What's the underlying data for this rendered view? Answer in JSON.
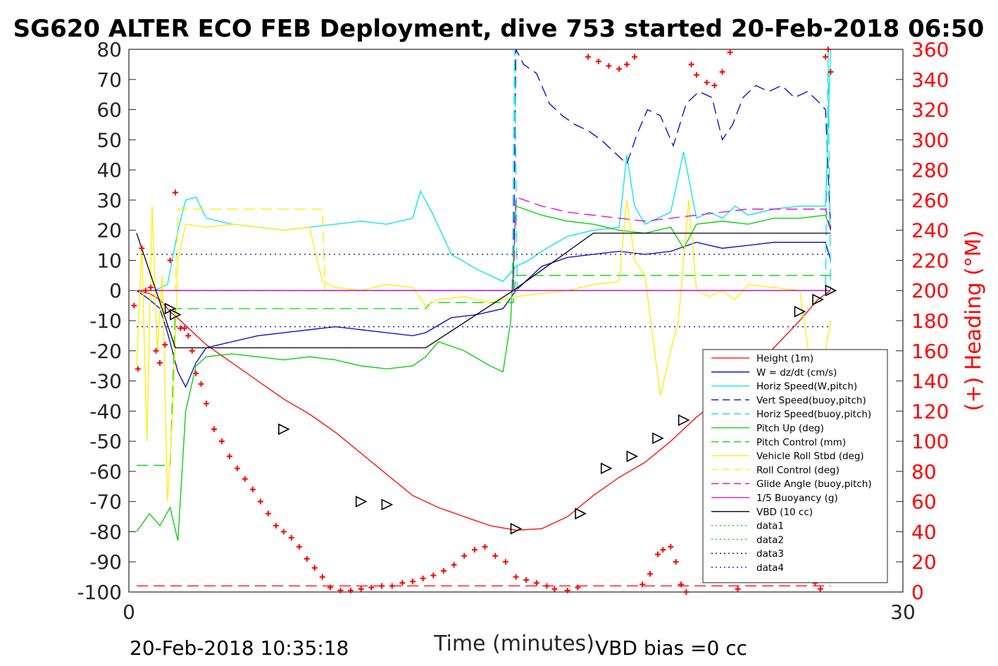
{
  "chart_data": {
    "type": "line",
    "title": "SG620 ALTER ECO FEB Deployment, dive 753 started 20-Feb-2018 06:50",
    "xlabel": "Time (minutes)",
    "ylabel_right": "(+) Heading (°M)",
    "xlim": [
      0,
      30
    ],
    "ylim_left": [
      -100,
      80
    ],
    "ylim_right": [
      0,
      360
    ],
    "x_ticks": [
      0,
      30
    ],
    "y_ticks_left": [
      80,
      70,
      60,
      50,
      40,
      30,
      20,
      10,
      0,
      -10,
      -20,
      -30,
      -40,
      -50,
      -60,
      -70,
      -80,
      -90,
      -100
    ],
    "y_ticks_right": [
      360,
      340,
      320,
      300,
      280,
      260,
      240,
      220,
      200,
      180,
      160,
      140,
      120,
      100,
      80,
      60,
      40,
      20,
      0
    ],
    "footer_left": "20-Feb-2018 10:35:18",
    "footer_right": "VBD bias =0 cc",
    "colors": {
      "right_axis": "#ff0000",
      "axis": "#262626"
    },
    "legend_position": "lower-right",
    "legend": [
      {
        "label": "Height (1m)",
        "color": "#ff0000",
        "dash": "solid"
      },
      {
        "label": "W = dz/dt (cm/s)",
        "color": "#0000cc",
        "dash": "solid"
      },
      {
        "label": "Horiz Speed(W,pitch)",
        "color": "#00e5e5",
        "dash": "solid"
      },
      {
        "label": "Vert Speed(buoy,pitch)",
        "color": "#0000cc",
        "dash": "dashed"
      },
      {
        "label": "Horiz Speed(buoy,pitch)",
        "color": "#00e5e5",
        "dash": "dashed"
      },
      {
        "label": "Pitch Up (deg)",
        "color": "#00cc00",
        "dash": "solid"
      },
      {
        "label": "Pitch Control (mm)",
        "color": "#00dd00",
        "dash": "dashed"
      },
      {
        "label": "Vehicle Roll Stbd (deg)",
        "color": "#ffee00",
        "dash": "solid"
      },
      {
        "label": "Roll Control (deg)",
        "color": "#ffee00",
        "dash": "dashed"
      },
      {
        "label": "Glide Angle (buoy,pitch)",
        "color": "#dd00dd",
        "dash": "dashed"
      },
      {
        "label": "1/5 Buoyancy (g)",
        "color": "#cc00cc",
        "dash": "solid"
      },
      {
        "label": "VBD (10 cc)",
        "color": "#000000",
        "dash": "solid"
      },
      {
        "label": "data1",
        "color": "#00cc00",
        "dash": "dotted"
      },
      {
        "label": "data2",
        "color": "#00cc00",
        "dash": "dotted"
      },
      {
        "label": "data3",
        "color": "#000080",
        "dash": "dotted"
      },
      {
        "label": "data4",
        "color": "#0000cc",
        "dash": "dotted"
      }
    ],
    "series": [
      {
        "name": "Height (1m)",
        "axis": "left",
        "color": "#ff0000",
        "dash": "solid",
        "x": [
          0.3,
          0.8,
          1.2,
          1.6,
          2.0,
          3.0,
          4.0,
          5.0,
          6.0,
          7.0,
          8.0,
          9.0,
          10.0,
          11.0,
          12.0,
          13.0,
          14.0,
          15.0,
          16.0,
          17.0,
          18.0,
          19.0,
          20.0,
          21.0,
          22.0,
          23.0,
          24.0,
          25.0,
          26.0,
          26.7,
          27.2
        ],
        "y": [
          0,
          -1,
          -3,
          -7,
          -10,
          -18,
          -24,
          -30,
          -36,
          -41,
          -47,
          -54,
          -61,
          -68,
          -72,
          -75,
          -78,
          -79.5,
          -79,
          -75,
          -68,
          -62,
          -57,
          -50,
          -42,
          -35,
          -27,
          -19,
          -10,
          -3,
          0
        ]
      },
      {
        "name": "W = dz/dt (cm/s)",
        "axis": "left",
        "color": "#0000cc",
        "dash": "solid",
        "x": [
          0.3,
          0.8,
          1.2,
          1.5,
          1.9,
          2.2,
          2.6,
          3.0,
          4.0,
          5.0,
          6.0,
          7.0,
          8.0,
          9.0,
          10.0,
          11.0,
          11.5,
          12.5,
          13.5,
          14.5,
          15.0,
          16.0,
          17.0,
          18.0,
          19.0,
          20.0,
          21.0,
          22.0,
          23.0,
          24.0,
          25.0,
          26.0,
          27.0,
          27.2
        ],
        "y": [
          0,
          -3,
          -6,
          -14,
          -27,
          -32,
          -24,
          -19,
          -17,
          -15,
          -14,
          -13,
          -12,
          -13,
          -14,
          -15,
          -14,
          -9,
          -8,
          -6,
          0,
          8,
          11,
          12,
          13,
          12,
          13,
          16,
          14,
          15,
          16,
          16,
          16,
          10
        ]
      },
      {
        "name": "Horiz Speed(W,pitch)",
        "axis": "left",
        "color": "#00e5e5",
        "dash": "solid",
        "x": [
          0.3,
          1.0,
          1.5,
          1.9,
          2.2,
          2.6,
          3.0,
          4.0,
          5.0,
          6.0,
          7.0,
          8.0,
          9.0,
          10.0,
          11.0,
          11.3,
          11.8,
          12.5,
          13.5,
          14.5,
          15.0,
          15.5,
          16.0,
          17.0,
          18.0,
          19.0,
          19.3,
          19.6,
          20.0,
          20.5,
          21.0,
          21.5,
          22.0,
          22.5,
          23.0,
          23.5,
          24.0,
          25.0,
          26.0,
          27.0,
          27.2
        ],
        "y": [
          0,
          0,
          2,
          20,
          30,
          31,
          24,
          22,
          21,
          20,
          21,
          22,
          23,
          22,
          24,
          33,
          25,
          12,
          7,
          3,
          8,
          10,
          13,
          18,
          20,
          21,
          45,
          28,
          22,
          24,
          26,
          46,
          24,
          26,
          24,
          28,
          25,
          27,
          28,
          28,
          80
        ]
      },
      {
        "name": "Vert Speed(buoy,pitch)",
        "axis": "left",
        "color": "#0000cc",
        "dash": "dashed",
        "x": [
          14.9,
          15.0,
          15.3,
          15.8,
          16.3,
          16.8,
          17.3,
          17.8,
          18.3,
          18.8,
          19.3,
          19.7,
          20.1,
          20.6,
          21.1,
          21.6,
          22.1,
          22.6,
          23.0,
          23.4,
          23.8,
          24.3,
          24.8,
          25.3,
          25.8,
          26.3,
          26.8,
          27.0,
          27.2
        ],
        "y": [
          0,
          80,
          75,
          72,
          62,
          58,
          55,
          53,
          50,
          46,
          42,
          52,
          60,
          58,
          48,
          62,
          66,
          64,
          50,
          55,
          64,
          68,
          66,
          68,
          64,
          66,
          62,
          60,
          20
        ]
      },
      {
        "name": "Horiz Speed(buoy,pitch)",
        "axis": "left",
        "color": "#00e5e5",
        "dash": "dashed",
        "x": [
          14.85,
          14.95,
          15.05,
          27.0,
          27.1,
          27.2
        ],
        "y": [
          0,
          80,
          0,
          0,
          80,
          0
        ]
      },
      {
        "name": "Pitch Up (deg)",
        "axis": "left",
        "color": "#00cc00",
        "dash": "solid",
        "x": [
          0.3,
          0.8,
          1.2,
          1.6,
          1.9,
          2.2,
          2.6,
          3.0,
          4.0,
          5.0,
          6.0,
          7.0,
          8.0,
          9.0,
          10.0,
          11.0,
          11.5,
          12.0,
          13.0,
          14.0,
          14.5,
          14.8,
          15.0,
          16.0,
          17.0,
          18.0,
          19.0,
          20.0,
          21.0,
          21.5,
          22.0,
          23.0,
          24.0,
          25.0,
          26.0,
          27.0,
          27.2
        ],
        "y": [
          -80,
          -74,
          -78,
          -72,
          -83,
          -40,
          -25,
          -22,
          -21,
          -22,
          -23,
          -22,
          -23,
          -25,
          -26,
          -25,
          -22,
          -17,
          -20,
          -25,
          -27,
          -10,
          28,
          25,
          23,
          22,
          20,
          19,
          21,
          14,
          22,
          23,
          22,
          24,
          24,
          25,
          20
        ]
      },
      {
        "name": "Pitch Control (mm)",
        "axis": "left",
        "color": "#00dd00",
        "dash": "dashed",
        "x": [
          0.3,
          1.6,
          1.8,
          11.5,
          11.7,
          14.9,
          15.0,
          27.2
        ],
        "y": [
          -58,
          -58,
          -6,
          -6,
          -4,
          -4,
          5,
          5
        ]
      },
      {
        "name": "Vehicle Roll Stbd (deg)",
        "axis": "left",
        "color": "#ffee00",
        "dash": "solid",
        "x": [
          0.3,
          0.5,
          0.7,
          0.9,
          1.1,
          1.3,
          1.5,
          1.7,
          1.9,
          2.2,
          3.0,
          4.0,
          5.0,
          6.0,
          7.0,
          7.5,
          8.0,
          9.0,
          10.0,
          11.0,
          11.5,
          12.0,
          13.0,
          14.0,
          15.0,
          16.0,
          17.0,
          18.0,
          19.0,
          19.3,
          19.6,
          20.0,
          20.6,
          21.0,
          21.3,
          21.7,
          22.0,
          22.5,
          23.0,
          23.5,
          24.0,
          25.0,
          26.0,
          26.5,
          26.9,
          27.2
        ],
        "y": [
          -25,
          15,
          -50,
          28,
          -20,
          5,
          -70,
          -40,
          10,
          22,
          21,
          22,
          21,
          20,
          21,
          3,
          1,
          0,
          2,
          1,
          -5,
          -3,
          -2,
          -4,
          -2,
          -1,
          0,
          2,
          3,
          30,
          10,
          5,
          -35,
          -20,
          -10,
          30,
          0,
          -2,
          0,
          -3,
          2,
          1,
          0,
          -30,
          -25,
          -10
        ]
      },
      {
        "name": "Roll Control (deg)",
        "axis": "left",
        "color": "#ffee00",
        "dash": "dashed",
        "x": [
          0.3,
          1.0,
          1.8,
          1.9,
          7.5,
          7.6,
          27.2
        ],
        "y": [
          0,
          0,
          0,
          27,
          27,
          0,
          0
        ]
      },
      {
        "name": "Glide Angle (buoy,pitch)",
        "axis": "left",
        "color": "#dd00dd",
        "dash": "dashed",
        "x": [
          0.3,
          14.9,
          15.0,
          16.0,
          17.0,
          18.0,
          19.0,
          20.0,
          21.0,
          22.0,
          23.0,
          24.0,
          25.0,
          26.0,
          27.0,
          27.2
        ],
        "y": [
          0,
          0,
          31,
          28,
          26,
          25,
          24,
          23,
          24,
          25,
          26,
          27,
          27,
          27,
          27,
          20
        ]
      },
      {
        "name": "1/5 Buoyancy (g)",
        "axis": "left",
        "color": "#cc00cc",
        "dash": "solid",
        "x": [
          0.3,
          14.9,
          27.2
        ],
        "y": [
          0,
          0,
          0
        ]
      },
      {
        "name": "VBD (10 cc)",
        "axis": "left",
        "color": "#000000",
        "dash": "solid",
        "x": [
          0.3,
          1.8,
          11.5,
          14.9,
          18.0,
          27.2
        ],
        "y": [
          19,
          -19,
          -19,
          0,
          19,
          19
        ]
      },
      {
        "name": "data3",
        "axis": "left",
        "color": "#000080",
        "dash": "dotted",
        "x": [
          0.3,
          27.2
        ],
        "y": [
          12,
          12
        ]
      },
      {
        "name": "data4",
        "axis": "left",
        "color": "#0000cc",
        "dash": "dotted",
        "x": [
          0.3,
          27.2
        ],
        "y": [
          -12,
          -12
        ]
      },
      {
        "name": "Heading reference",
        "axis": "right",
        "color": "#ff0000",
        "dash": "dashed",
        "x": [
          0.3,
          27.2
        ],
        "y": [
          4,
          4
        ]
      }
    ],
    "heading_points": {
      "axis": "right",
      "color": "#ff0000",
      "x": [
        0.2,
        0.35,
        0.5,
        0.65,
        0.85,
        1.05,
        1.2,
        1.4,
        1.6,
        1.8,
        2.0,
        2.15,
        2.3,
        2.45,
        2.6,
        2.8,
        3.0,
        3.3,
        3.6,
        3.9,
        4.2,
        4.5,
        4.8,
        5.1,
        5.4,
        5.7,
        6.0,
        6.3,
        6.6,
        6.9,
        7.2,
        7.5,
        7.8,
        8.2,
        8.6,
        9.0,
        9.4,
        9.8,
        10.2,
        10.6,
        11.0,
        11.4,
        11.8,
        12.2,
        12.6,
        13.0,
        13.4,
        13.8,
        14.2,
        14.6,
        15.0,
        15.4,
        15.8,
        16.2,
        16.5,
        17.0,
        17.4,
        17.8,
        18.2,
        18.6,
        19.0,
        19.3,
        19.6,
        19.9,
        20.2,
        20.5,
        20.7,
        21.0,
        21.2,
        21.4,
        21.6,
        21.8,
        22.0,
        22.4,
        22.7,
        23.0,
        23.3,
        23.6,
        23.9,
        24.2,
        24.5,
        24.8,
        25.1,
        25.4,
        25.7,
        26.0,
        26.3,
        26.6,
        26.8,
        27.0,
        27.1,
        27.2
      ],
      "y": [
        190,
        148,
        228,
        200,
        202,
        160,
        152,
        164,
        220,
        265,
        175,
        175,
        170,
        160,
        145,
        138,
        125,
        108,
        100,
        90,
        82,
        75,
        68,
        60,
        52,
        44,
        40,
        36,
        30,
        22,
        16,
        10,
        3,
        1,
        1,
        2,
        3,
        4,
        4,
        6,
        7,
        9,
        11,
        14,
        18,
        24,
        28,
        30,
        24,
        20,
        10,
        8,
        6,
        4,
        2,
        1,
        3,
        355,
        352,
        349,
        347,
        350,
        355,
        5,
        12,
        25,
        28,
        30,
        20,
        5,
        0,
        350,
        343,
        338,
        336,
        345,
        358,
        2,
        18,
        17,
        16,
        15,
        16,
        14,
        12,
        13,
        18,
        6,
        2,
        355,
        360,
        345
      ]
    },
    "markers": {
      "shape": "triangle-open",
      "color": "#000000",
      "x": [
        1.6,
        1.8,
        6.0,
        9.0,
        10.0,
        15.0,
        17.5,
        18.5,
        19.5,
        20.5,
        21.5,
        23.0,
        24.0,
        26.0,
        26.7,
        27.2
      ],
      "y": [
        -6,
        -8,
        -46,
        -70,
        -71,
        -79,
        -74,
        -59,
        -55,
        -49,
        -43,
        -36,
        -30,
        -7,
        -3,
        0
      ]
    }
  }
}
